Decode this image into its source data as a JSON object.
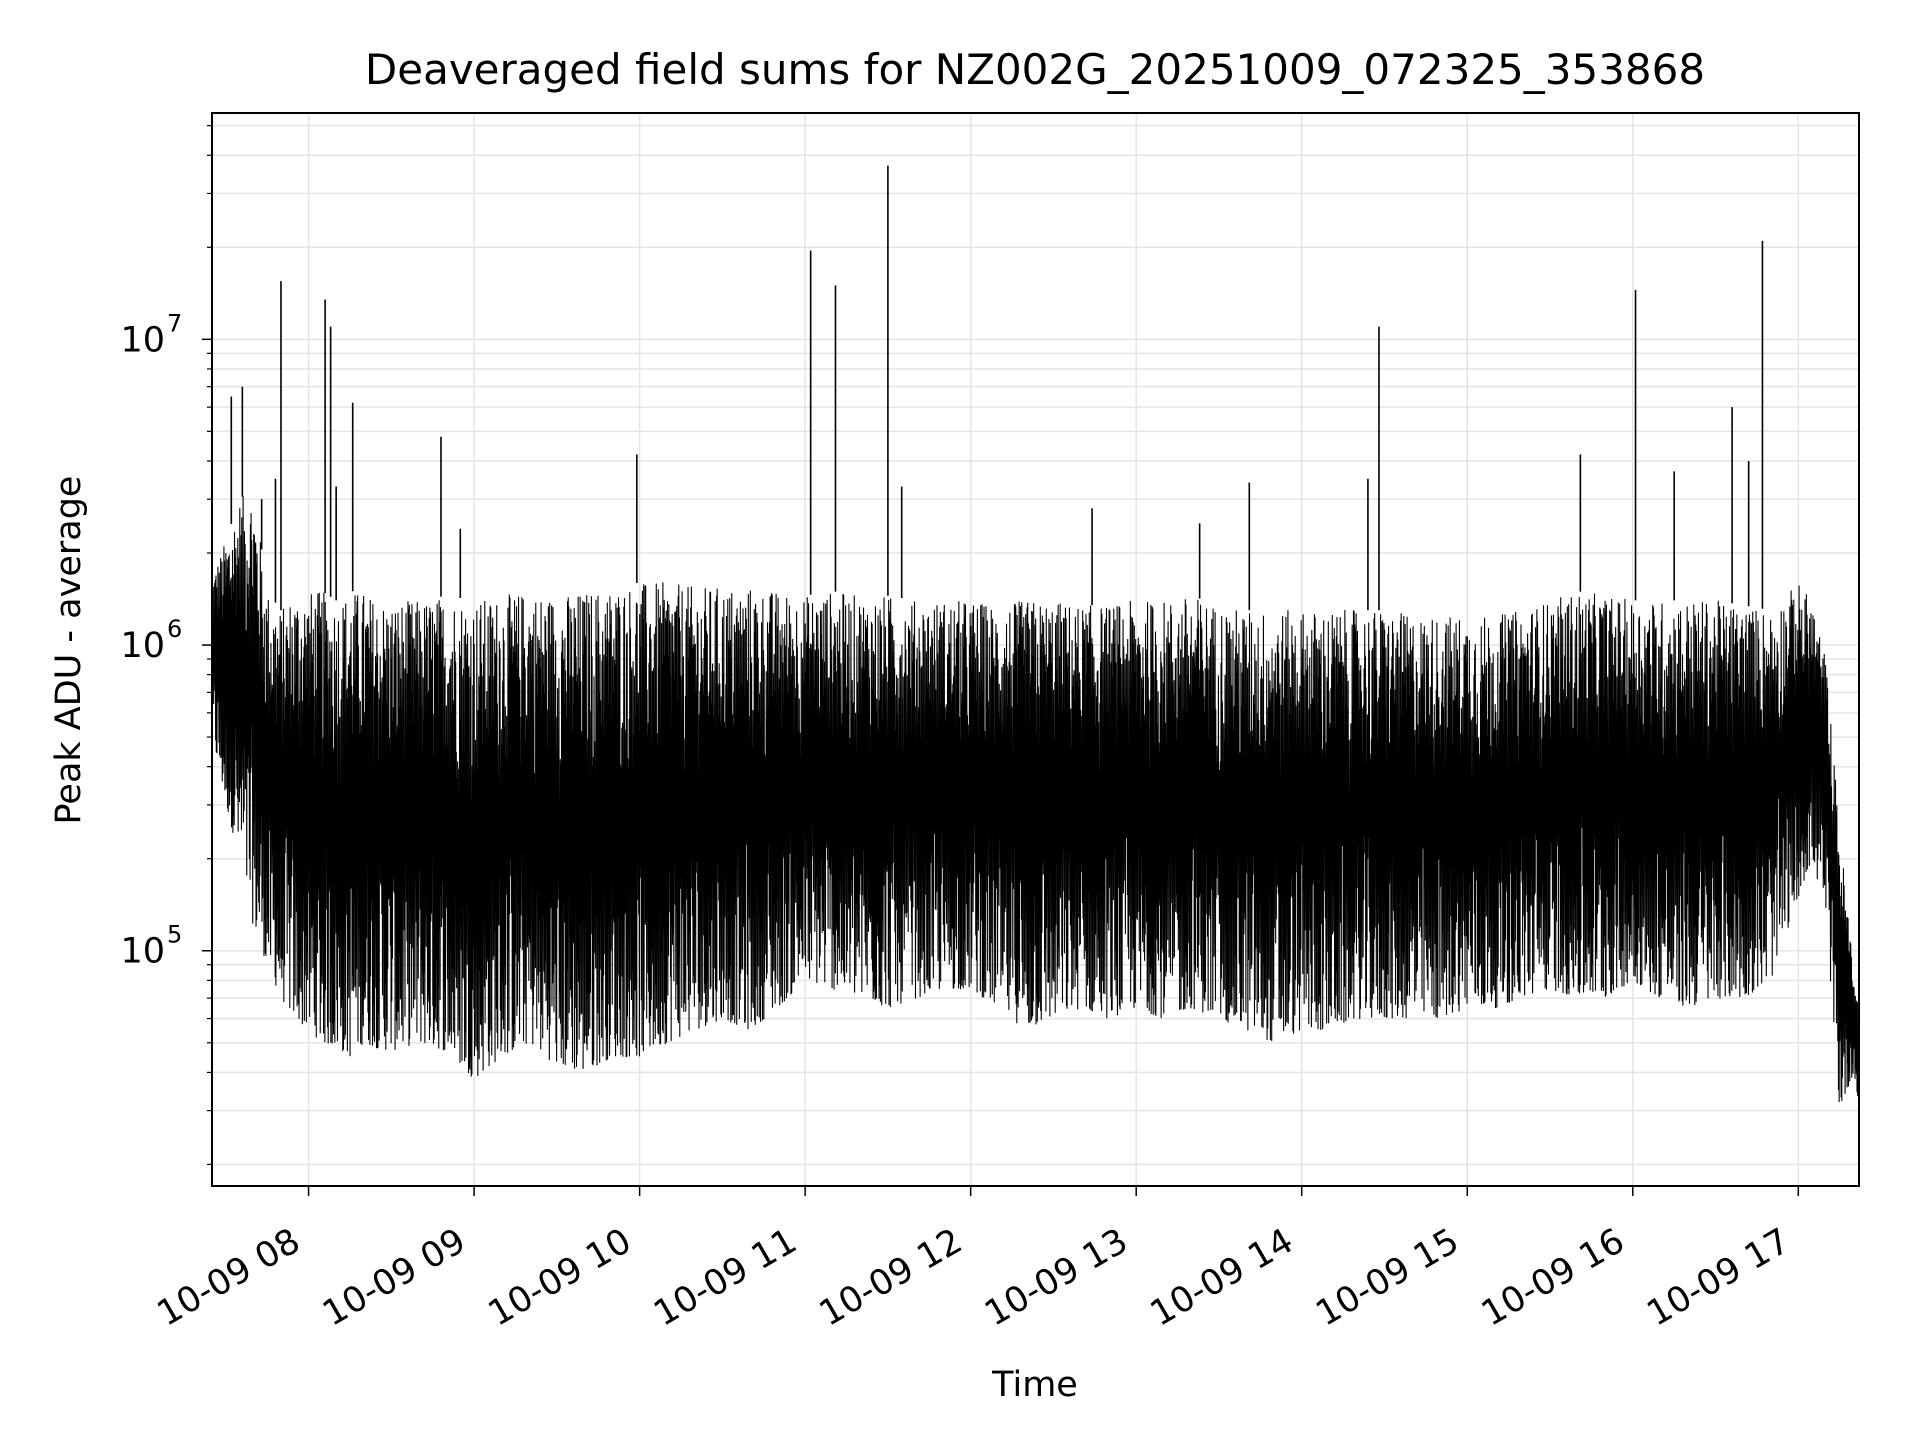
{
  "chart_data": {
    "type": "line",
    "title": "Deaveraged field sums for NZ002G_20251009_072325_353868",
    "xlabel": "Time",
    "ylabel": "Peak ADU - average",
    "yscale": "log",
    "ylim": [
      17000,
      55000000
    ],
    "xlim": [
      "2025-10-09 07:25",
      "2025-10-09 17:22"
    ],
    "grid": true,
    "line_color": "#000000",
    "x_ticks": [
      {
        "label": "10-09 08",
        "value": "2025-10-09 08:00"
      },
      {
        "label": "10-09 09",
        "value": "2025-10-09 09:00"
      },
      {
        "label": "10-09 10",
        "value": "2025-10-09 10:00"
      },
      {
        "label": "10-09 11",
        "value": "2025-10-09 11:00"
      },
      {
        "label": "10-09 12",
        "value": "2025-10-09 12:00"
      },
      {
        "label": "10-09 13",
        "value": "2025-10-09 13:00"
      },
      {
        "label": "10-09 14",
        "value": "2025-10-09 14:00"
      },
      {
        "label": "10-09 15",
        "value": "2025-10-09 15:00"
      },
      {
        "label": "10-09 16",
        "value": "2025-10-09 16:00"
      },
      {
        "label": "10-09 17",
        "value": "2025-10-09 17:00"
      }
    ],
    "y_ticks": [
      {
        "base": "10",
        "exp": "5",
        "value": 100000
      },
      {
        "base": "10",
        "exp": "6",
        "value": 1000000
      },
      {
        "base": "10",
        "exp": "7",
        "value": 10000000
      }
    ],
    "series": [
      {
        "x": [
          "2025-10-09 07:25",
          "2025-10-09 07:30",
          "2025-10-09 07:35",
          "2025-10-09 07:40",
          "2025-10-09 07:45",
          "2025-10-09 07:50",
          "2025-10-09 07:55",
          "2025-10-09 08:00",
          "2025-10-09 08:05",
          "2025-10-09 08:10",
          "2025-10-09 08:15",
          "2025-10-09 08:20",
          "2025-10-09 08:25",
          "2025-10-09 08:30",
          "2025-10-09 08:40",
          "2025-10-09 08:50",
          "2025-10-09 09:00",
          "2025-10-09 09:10",
          "2025-10-09 09:20",
          "2025-10-09 09:30",
          "2025-10-09 09:40",
          "2025-10-09 09:50",
          "2025-10-09 10:00",
          "2025-10-09 10:10",
          "2025-10-09 10:20",
          "2025-10-09 10:30",
          "2025-10-09 10:40",
          "2025-10-09 10:50",
          "2025-10-09 11:00",
          "2025-10-09 11:10",
          "2025-10-09 11:20",
          "2025-10-09 11:30",
          "2025-10-09 11:40",
          "2025-10-09 11:50",
          "2025-10-09 12:00",
          "2025-10-09 12:10",
          "2025-10-09 12:20",
          "2025-10-09 12:30",
          "2025-10-09 12:40",
          "2025-10-09 12:50",
          "2025-10-09 13:00",
          "2025-10-09 13:10",
          "2025-10-09 13:20",
          "2025-10-09 13:30",
          "2025-10-09 13:40",
          "2025-10-09 13:50",
          "2025-10-09 14:00",
          "2025-10-09 14:10",
          "2025-10-09 14:20",
          "2025-10-09 14:30",
          "2025-10-09 14:40",
          "2025-10-09 14:50",
          "2025-10-09 15:00",
          "2025-10-09 15:10",
          "2025-10-09 15:20",
          "2025-10-09 15:30",
          "2025-10-09 15:40",
          "2025-10-09 15:50",
          "2025-10-09 16:00",
          "2025-10-09 16:10",
          "2025-10-09 16:20",
          "2025-10-09 16:30",
          "2025-10-09 16:40",
          "2025-10-09 16:50",
          "2025-10-09 17:00",
          "2025-10-09 17:05",
          "2025-10-09 17:10",
          "2025-10-09 17:15",
          "2025-10-09 17:20",
          "2025-10-09 17:22"
        ],
        "y_low": [
          500000,
          300000,
          200000,
          120000,
          90000,
          70000,
          60000,
          55000,
          50000,
          48000,
          45000,
          50000,
          48000,
          47000,
          50000,
          47000,
          38000,
          45000,
          50000,
          42000,
          40000,
          45000,
          45000,
          50000,
          55000,
          60000,
          55000,
          65000,
          80000,
          75000,
          70000,
          65000,
          70000,
          75000,
          75000,
          65000,
          55000,
          60000,
          65000,
          60000,
          65000,
          60000,
          65000,
          60000,
          55000,
          50000,
          55000,
          55000,
          60000,
          60000,
          60000,
          60000,
          65000,
          65000,
          70000,
          75000,
          70000,
          70000,
          80000,
          70000,
          65000,
          70000,
          70000,
          80000,
          150000,
          200000,
          130000,
          30000,
          40000,
          30000
        ],
        "y_high": [
          1700000,
          2200000,
          3000000,
          3300000,
          1500000,
          1300000,
          1500000,
          1500000,
          1500000,
          1400000,
          1500000,
          1500000,
          1400000,
          1400000,
          1400000,
          1450000,
          1400000,
          1450000,
          1500000,
          1450000,
          1500000,
          1550000,
          1600000,
          1600000,
          1550000,
          1550000,
          1550000,
          1500000,
          1450000,
          1500000,
          1450000,
          1450000,
          1400000,
          1400000,
          1400000,
          1350000,
          1400000,
          1400000,
          1350000,
          1350000,
          1400000,
          1400000,
          1450000,
          1350000,
          1300000,
          1300000,
          1300000,
          1300000,
          1300000,
          1300000,
          1250000,
          1250000,
          1250000,
          1250000,
          1300000,
          1400000,
          1500000,
          1450000,
          1400000,
          1400000,
          1400000,
          1400000,
          1350000,
          1300000,
          1600000,
          1400000,
          900000,
          250000,
          90000,
          60000
        ]
      }
    ],
    "spikes": [
      {
        "x": "2025-10-09 07:32",
        "y": 6500000
      },
      {
        "x": "2025-10-09 07:36",
        "y": 7000000
      },
      {
        "x": "2025-10-09 07:43",
        "y": 3000000
      },
      {
        "x": "2025-10-09 07:48",
        "y": 3500000
      },
      {
        "x": "2025-10-09 07:50",
        "y": 15500000
      },
      {
        "x": "2025-10-09 08:06",
        "y": 13500000
      },
      {
        "x": "2025-10-09 08:08",
        "y": 11000000
      },
      {
        "x": "2025-10-09 08:10",
        "y": 3300000
      },
      {
        "x": "2025-10-09 08:16",
        "y": 6200000
      },
      {
        "x": "2025-10-09 08:48",
        "y": 4800000
      },
      {
        "x": "2025-10-09 08:55",
        "y": 2400000
      },
      {
        "x": "2025-10-09 09:59",
        "y": 4200000
      },
      {
        "x": "2025-10-09 11:02",
        "y": 19500000
      },
      {
        "x": "2025-10-09 11:11",
        "y": 15000000
      },
      {
        "x": "2025-10-09 11:30",
        "y": 37000000
      },
      {
        "x": "2025-10-09 11:35",
        "y": 3300000
      },
      {
        "x": "2025-10-09 12:44",
        "y": 2800000
      },
      {
        "x": "2025-10-09 13:23",
        "y": 2500000
      },
      {
        "x": "2025-10-09 13:41",
        "y": 3400000
      },
      {
        "x": "2025-10-09 14:24",
        "y": 3500000
      },
      {
        "x": "2025-10-09 14:28",
        "y": 11000000
      },
      {
        "x": "2025-10-09 15:41",
        "y": 4200000
      },
      {
        "x": "2025-10-09 16:01",
        "y": 14500000
      },
      {
        "x": "2025-10-09 16:15",
        "y": 3700000
      },
      {
        "x": "2025-10-09 16:36",
        "y": 6000000
      },
      {
        "x": "2025-10-09 16:42",
        "y": 4000000
      },
      {
        "x": "2025-10-09 16:47",
        "y": 21000000
      }
    ]
  }
}
